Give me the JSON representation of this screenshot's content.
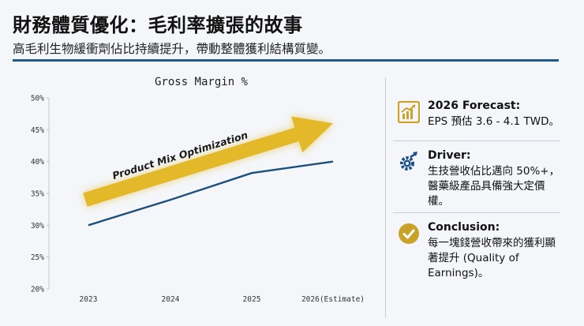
{
  "header": {
    "title": "財務體質優化：毛利率擴張的故事",
    "subtitle": "高毛利生物緩衝劑佔比持續提升，帶動整體獲利結構質變。"
  },
  "chart_data": {
    "type": "line",
    "title": "Gross Margin %",
    "categories": [
      "2023",
      "2024",
      "2025",
      "2026(Estimate)"
    ],
    "series": [
      {
        "name": "Gross Margin %",
        "values": [
          30,
          34,
          38.2,
          40
        ]
      }
    ],
    "ylim": [
      20,
      50
    ],
    "yticks": [
      20,
      25,
      30,
      35,
      40,
      45,
      50
    ],
    "ytick_labels": [
      "20%",
      "25%",
      "30%",
      "35%",
      "40%",
      "45%",
      "50%"
    ],
    "xlabel": "",
    "ylabel": "",
    "line_color": "#1d4f7c",
    "annotation": {
      "text": "Product Mix Optimization",
      "arrow_color": "#e3b92a",
      "from": {
        "x": 0,
        "y": 34
      },
      "to": {
        "x": 3,
        "y": 46
      }
    }
  },
  "sidebar": {
    "cards": [
      {
        "icon": "chart-growth-icon",
        "icon_color": "#c9a227",
        "head": "2026 Forecast:",
        "body": "EPS 預估 3.6 - 4.1 TWD。"
      },
      {
        "icon": "gear-arrow-icon",
        "icon_color": "#1d4f8c",
        "head": "Driver:",
        "body": "生技營收佔比邁向 50%+，醫藥級產品具備強大定價權。"
      },
      {
        "icon": "check-circle-icon",
        "icon_color": "#c9a227",
        "head": "Conclusion:",
        "body": "每一塊錢營收帶來的獲利顯著提升 (Quality of Earnings)。"
      }
    ]
  }
}
